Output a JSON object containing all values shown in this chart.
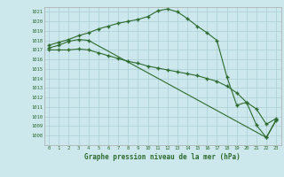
{
  "line1": {
    "x": [
      0,
      1,
      2,
      3,
      4,
      5,
      6,
      7,
      8,
      9,
      10,
      11,
      12,
      13,
      14,
      15,
      16,
      17,
      18,
      19,
      20,
      21,
      22,
      23
    ],
    "y": [
      1017.5,
      1017.8,
      1018.1,
      1018.5,
      1018.8,
      1019.2,
      1019.5,
      1019.8,
      1020.0,
      1020.2,
      1020.5,
      1021.1,
      1021.3,
      1021.0,
      1020.3,
      1019.5,
      1018.8,
      1018.0,
      1014.2,
      1011.2,
      1011.5,
      1009.1,
      1007.8,
      1009.7
    ]
  },
  "line2": {
    "x": [
      0,
      1,
      2,
      3,
      4,
      22,
      23
    ],
    "y": [
      1017.2,
      1017.5,
      1017.9,
      1018.1,
      1018.0,
      1007.8,
      1009.6
    ]
  },
  "line3": {
    "x": [
      0,
      1,
      2,
      3,
      4,
      5,
      6,
      7,
      8,
      9,
      10,
      11,
      12,
      13,
      14,
      15,
      16,
      17,
      18,
      19,
      20,
      21,
      22,
      23
    ],
    "y": [
      1017.0,
      1017.0,
      1017.0,
      1017.1,
      1017.0,
      1016.7,
      1016.4,
      1016.1,
      1015.8,
      1015.6,
      1015.3,
      1015.1,
      1014.9,
      1014.7,
      1014.5,
      1014.3,
      1014.0,
      1013.7,
      1013.2,
      1012.5,
      1011.5,
      1010.8,
      1009.2,
      1009.8
    ]
  },
  "line_color": "#2d6a2d",
  "bg_color": "#cce8ed",
  "grid_color": "#aacdd4",
  "text_color": "#2d6a2d",
  "xlabel": "Graphe pression niveau de la mer (hPa)",
  "ylim_min": 1007.0,
  "ylim_max": 1021.5,
  "xlim_min": -0.5,
  "xlim_max": 23.5,
  "yticks": [
    1008,
    1009,
    1010,
    1011,
    1012,
    1013,
    1014,
    1015,
    1016,
    1017,
    1018,
    1019,
    1020,
    1021
  ],
  "xticks": [
    0,
    1,
    2,
    3,
    4,
    5,
    6,
    7,
    8,
    9,
    10,
    11,
    12,
    13,
    14,
    15,
    16,
    17,
    18,
    19,
    20,
    21,
    22,
    23
  ]
}
